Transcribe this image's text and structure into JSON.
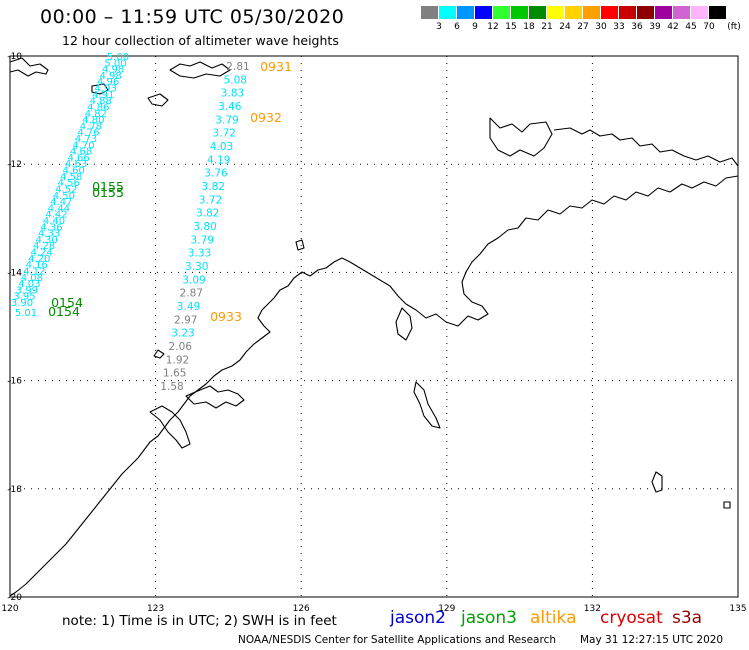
{
  "header": {
    "title": "00:00 – 11:59 UTC 05/30/2020",
    "subtitle": "12 hour collection of altimeter wave heights"
  },
  "colorbar": {
    "unit": "(ft)",
    "bins": [
      {
        "label": "3",
        "color": "#808080"
      },
      {
        "label": "6",
        "color": "#00ffff"
      },
      {
        "label": "9",
        "color": "#0096ff"
      },
      {
        "label": "12",
        "color": "#0000ff"
      },
      {
        "label": "15",
        "color": "#32ff32"
      },
      {
        "label": "18",
        "color": "#00c800"
      },
      {
        "label": "21",
        "color": "#008c00"
      },
      {
        "label": "24",
        "color": "#ffff00"
      },
      {
        "label": "27",
        "color": "#ffd200"
      },
      {
        "label": "30",
        "color": "#ffa000"
      },
      {
        "label": "33",
        "color": "#ff0000"
      },
      {
        "label": "36",
        "color": "#c80000"
      },
      {
        "label": "39",
        "color": "#8c0000"
      },
      {
        "label": "42",
        "color": "#a000a0"
      },
      {
        "label": "45",
        "color": "#d264d2"
      },
      {
        "label": "70",
        "color": "#ffb4ff"
      },
      {
        "label": "",
        "color": "#000000"
      }
    ]
  },
  "map": {
    "lon_range": [
      120,
      135
    ],
    "lat_range": [
      -20,
      -10
    ],
    "lon_ticks": [
      "120",
      "123",
      "126",
      "129",
      "132",
      "135"
    ],
    "lat_ticks": [
      "-10",
      "-12",
      "-14",
      "-16",
      "-18",
      "-20"
    ],
    "colors": {
      "gray": "#808080",
      "cyan": "#00e0ff",
      "green": "#008c00",
      "orange": "#ff9900"
    },
    "track_west_values": [
      "5.00",
      "5.00",
      "4.98",
      "4.98",
      "4.96",
      "4.93",
      "4.91",
      "4.88",
      "4.86",
      "4.82",
      "4.80",
      "4.78",
      "4.76",
      "4.73",
      "4.70",
      "4.68",
      "4.66",
      "4.63",
      "4.60",
      "4.58",
      "4.56",
      "4.52",
      "4.50",
      "4.47",
      "4.44",
      "4.42",
      "4.40",
      "4.36",
      "4.33",
      "4.30",
      "4.28",
      "4.24",
      "4.20",
      "4.16",
      "4.12",
      "4.08",
      "4.03",
      "3.99",
      "3.95",
      "3.90",
      "5.01"
    ],
    "track_east_values": [
      {
        "v": "2.81",
        "c": "gray"
      },
      {
        "v": "5.08",
        "c": "cyan"
      },
      {
        "v": "3.83",
        "c": "cyan"
      },
      {
        "v": "3.46",
        "c": "cyan"
      },
      {
        "v": "3.79",
        "c": "cyan"
      },
      {
        "v": "3.72",
        "c": "cyan"
      },
      {
        "v": "4.03",
        "c": "cyan"
      },
      {
        "v": "4.19",
        "c": "cyan"
      },
      {
        "v": "3.76",
        "c": "cyan"
      },
      {
        "v": "3.82",
        "c": "cyan"
      },
      {
        "v": "3.72",
        "c": "cyan"
      },
      {
        "v": "3.82",
        "c": "cyan"
      },
      {
        "v": "3.80",
        "c": "cyan"
      },
      {
        "v": "3.79",
        "c": "cyan"
      },
      {
        "v": "3.33",
        "c": "cyan"
      },
      {
        "v": "3.30",
        "c": "cyan"
      },
      {
        "v": "3.09",
        "c": "cyan"
      },
      {
        "v": "2.87",
        "c": "gray"
      },
      {
        "v": "3.49",
        "c": "cyan"
      },
      {
        "v": "2.97",
        "c": "gray"
      },
      {
        "v": "3.23",
        "c": "cyan"
      },
      {
        "v": "2.06",
        "c": "gray"
      },
      {
        "v": "1.92",
        "c": "gray"
      },
      {
        "v": "1.65",
        "c": "gray"
      },
      {
        "v": "1.58",
        "c": "gray"
      }
    ],
    "time_labels": [
      {
        "t": "0931",
        "c": "orange"
      },
      {
        "t": "0932",
        "c": "orange"
      },
      {
        "t": "0933",
        "c": "orange"
      },
      {
        "t": "0155",
        "c": "green"
      },
      {
        "t": "0155",
        "c": "green"
      },
      {
        "t": "0154",
        "c": "green"
      },
      {
        "t": "0154",
        "c": "green"
      }
    ]
  },
  "footer": {
    "note": "note: 1) Time is in UTC; 2) SWH is in feet",
    "satellites": [
      {
        "name": "jason2",
        "color": "#0000cc"
      },
      {
        "name": "jason3",
        "color": "#00a000"
      },
      {
        "name": "altika",
        "color": "#ff9900"
      },
      {
        "name": "cryosat",
        "color": "#dd0000"
      },
      {
        "name": "s3a",
        "color": "#990000"
      }
    ],
    "credit": "NOAA/NESDIS Center for Satellite Applications and Research",
    "timestamp": "May 31 12:27:15 UTC 2020"
  }
}
